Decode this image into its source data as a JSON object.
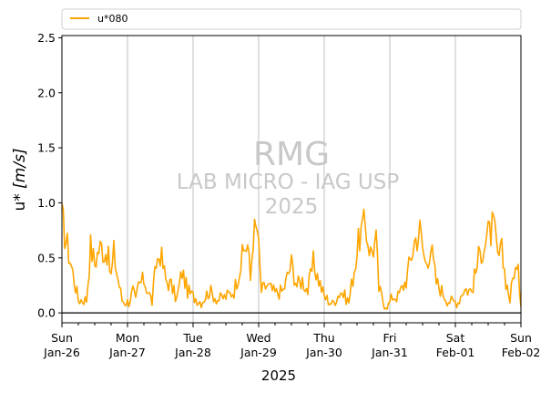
{
  "chart_data": {
    "type": "line",
    "title": "",
    "xlabel": "2025",
    "ylabel": "u* [m/s]",
    "ylabel_parts": {
      "text": "u* ",
      "unit": "[m/s]"
    },
    "ylim": [
      -0.09,
      2.52
    ],
    "xlim": [
      "2025-01-26",
      "2025-02-02"
    ],
    "yticks": [
      "0.0",
      "0.5",
      "1.0",
      "1.5",
      "2.0",
      "2.5"
    ],
    "ytick_values": [
      0.0,
      0.5,
      1.0,
      1.5,
      2.0,
      2.5
    ],
    "xticks": [
      {
        "day": "Sun",
        "date": "Jan-26"
      },
      {
        "day": "Mon",
        "date": "Jan-27"
      },
      {
        "day": "Tue",
        "date": "Jan-28"
      },
      {
        "day": "Wed",
        "date": "Jan-29"
      },
      {
        "day": "Thu",
        "date": "Jan-30"
      },
      {
        "day": "Fri",
        "date": "Jan-31"
      },
      {
        "day": "Sat",
        "date": "Feb-01"
      },
      {
        "day": "Sun",
        "date": "Feb-02"
      }
    ],
    "grid": "vertical gridlines at day ticks",
    "zero_line": true,
    "legend": {
      "placement": "top, above axes",
      "entries": [
        "u*080"
      ]
    },
    "watermark": [
      "RMG",
      "LAB MICRO - IAG USP",
      "2025"
    ],
    "series": [
      {
        "name": "u*080",
        "color": "#ffa500",
        "x": [
          "2025-01-26 00:00",
          "2025-01-26 06:00",
          "2025-01-26 09:00",
          "2025-01-26 10:30",
          "2025-01-26 12:00",
          "2025-01-26 13:30",
          "2025-01-26 14:30",
          "2025-01-26 15:30",
          "2025-01-26 16:30",
          "2025-01-26 18:00",
          "2025-01-26 19:00",
          "2025-01-26 20:00",
          "2025-01-26 21:00",
          "2025-01-26 22:00",
          "2025-01-26 23:00",
          "2025-01-27 00:30",
          "2025-01-27 02:00",
          "2025-01-27 03:00",
          "2025-01-27 04:00",
          "2025-01-27 06:00",
          "2025-01-27 09:00",
          "2025-01-27 10:30",
          "2025-01-27 12:00",
          "2025-01-27 14:00",
          "2025-01-27 16:00",
          "2025-01-27 18:00",
          "2025-01-27 20:00",
          "2025-01-27 22:00",
          "2025-01-28 00:00",
          "2025-01-28 03:00",
          "2025-01-28 06:00",
          "2025-01-28 09:00",
          "2025-01-28 12:00",
          "2025-01-28 15:00",
          "2025-01-28 18:00",
          "2025-01-28 19:00",
          "2025-01-28 20:00",
          "2025-01-28 21:00",
          "2025-01-28 22:00",
          "2025-01-28 23:30",
          "2025-01-29 01:00",
          "2025-01-29 03:00",
          "2025-01-29 06:00",
          "2025-01-29 09:00",
          "2025-01-29 12:00",
          "2025-01-29 14:00",
          "2025-01-29 16:00",
          "2025-01-29 18:00",
          "2025-01-29 20:00",
          "2025-01-29 22:00",
          "2025-01-30 00:00",
          "2025-01-30 03:00",
          "2025-01-30 06:00",
          "2025-01-30 09:00",
          "2025-01-30 11:00",
          "2025-01-30 13:00",
          "2025-01-30 15:00",
          "2025-01-30 17:00",
          "2025-01-30 19:00",
          "2025-01-30 20:00",
          "2025-01-30 21:00",
          "2025-01-30 22:00",
          "2025-01-30 23:30",
          "2025-01-31 01:00",
          "2025-01-31 03:00",
          "2025-01-31 06:00",
          "2025-01-31 09:00",
          "2025-01-31 11:00",
          "2025-01-31 13:00",
          "2025-01-31 15:00",
          "2025-01-31 17:00",
          "2025-01-31 19:00",
          "2025-01-31 21:00",
          "2025-01-31 23:00",
          "2025-02-01 01:00",
          "2025-02-01 03:00",
          "2025-02-01 06:00",
          "2025-02-01 09:00",
          "2025-02-01 12:00",
          "2025-02-01 14:00",
          "2025-02-01 15:30",
          "2025-02-01 17:00",
          "2025-02-01 18:30",
          "2025-02-01 20:00",
          "2025-02-01 21:30",
          "2025-02-01 23:00",
          "2025-02-02 00:00"
        ],
        "values": [
          0.85,
          0.12,
          0.12,
          0.6,
          0.45,
          0.58,
          0.6,
          0.55,
          0.56,
          0.33,
          0.55,
          0.38,
          0.25,
          0.12,
          0.1,
          0.1,
          0.2,
          0.1,
          0.25,
          0.3,
          0.1,
          0.45,
          0.55,
          0.3,
          0.25,
          0.12,
          0.38,
          0.2,
          0.15,
          0.1,
          0.2,
          0.12,
          0.15,
          0.2,
          0.5,
          0.6,
          0.62,
          0.3,
          0.72,
          0.76,
          0.2,
          0.25,
          0.18,
          0.2,
          0.45,
          0.25,
          0.3,
          0.2,
          0.45,
          0.3,
          0.15,
          0.08,
          0.2,
          0.1,
          0.4,
          0.7,
          0.8,
          0.55,
          0.65,
          0.22,
          0.15,
          0.08,
          0.07,
          0.15,
          0.15,
          0.3,
          0.65,
          0.75,
          0.45,
          0.6,
          0.28,
          0.2,
          0.12,
          0.1,
          0.1,
          0.22,
          0.2,
          0.55,
          0.7,
          0.78,
          0.5,
          0.55,
          0.3,
          0.12,
          0.4,
          0.35,
          0.1
        ]
      }
    ]
  }
}
